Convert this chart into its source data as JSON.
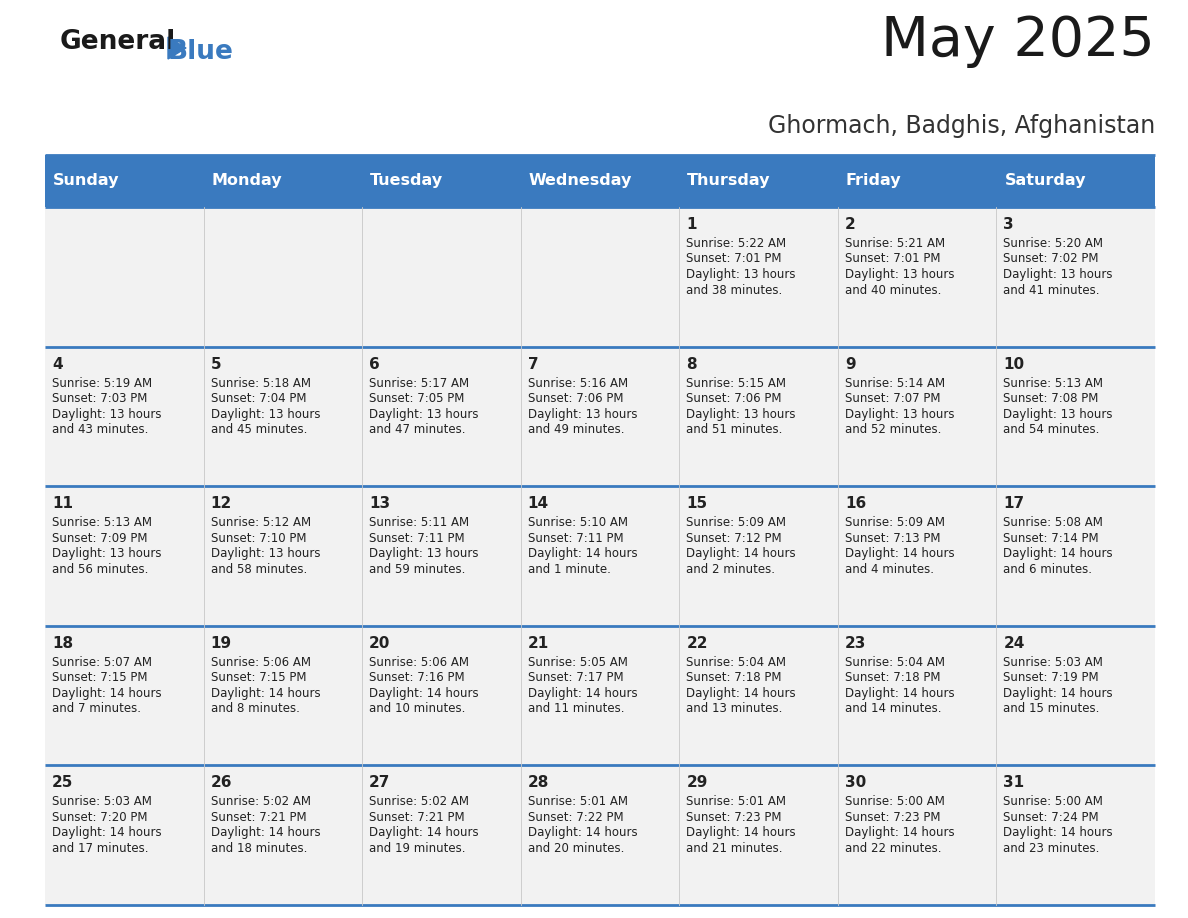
{
  "title": "May 2025",
  "subtitle": "Ghormach, Badghis, Afghanistan",
  "header_bg": "#3a7abf",
  "header_text": "#ffffff",
  "cell_bg": "#f2f2f2",
  "row_line_color": "#3a7abf",
  "days_of_week": [
    "Sunday",
    "Monday",
    "Tuesday",
    "Wednesday",
    "Thursday",
    "Friday",
    "Saturday"
  ],
  "calendar": [
    [
      {
        "day": "",
        "sunrise": "",
        "sunset": "",
        "daylight": ""
      },
      {
        "day": "",
        "sunrise": "",
        "sunset": "",
        "daylight": ""
      },
      {
        "day": "",
        "sunrise": "",
        "sunset": "",
        "daylight": ""
      },
      {
        "day": "",
        "sunrise": "",
        "sunset": "",
        "daylight": ""
      },
      {
        "day": "1",
        "sunrise": "5:22 AM",
        "sunset": "7:01 PM",
        "daylight": "13 hours\nand 38 minutes."
      },
      {
        "day": "2",
        "sunrise": "5:21 AM",
        "sunset": "7:01 PM",
        "daylight": "13 hours\nand 40 minutes."
      },
      {
        "day": "3",
        "sunrise": "5:20 AM",
        "sunset": "7:02 PM",
        "daylight": "13 hours\nand 41 minutes."
      }
    ],
    [
      {
        "day": "4",
        "sunrise": "5:19 AM",
        "sunset": "7:03 PM",
        "daylight": "13 hours\nand 43 minutes."
      },
      {
        "day": "5",
        "sunrise": "5:18 AM",
        "sunset": "7:04 PM",
        "daylight": "13 hours\nand 45 minutes."
      },
      {
        "day": "6",
        "sunrise": "5:17 AM",
        "sunset": "7:05 PM",
        "daylight": "13 hours\nand 47 minutes."
      },
      {
        "day": "7",
        "sunrise": "5:16 AM",
        "sunset": "7:06 PM",
        "daylight": "13 hours\nand 49 minutes."
      },
      {
        "day": "8",
        "sunrise": "5:15 AM",
        "sunset": "7:06 PM",
        "daylight": "13 hours\nand 51 minutes."
      },
      {
        "day": "9",
        "sunrise": "5:14 AM",
        "sunset": "7:07 PM",
        "daylight": "13 hours\nand 52 minutes."
      },
      {
        "day": "10",
        "sunrise": "5:13 AM",
        "sunset": "7:08 PM",
        "daylight": "13 hours\nand 54 minutes."
      }
    ],
    [
      {
        "day": "11",
        "sunrise": "5:13 AM",
        "sunset": "7:09 PM",
        "daylight": "13 hours\nand 56 minutes."
      },
      {
        "day": "12",
        "sunrise": "5:12 AM",
        "sunset": "7:10 PM",
        "daylight": "13 hours\nand 58 minutes."
      },
      {
        "day": "13",
        "sunrise": "5:11 AM",
        "sunset": "7:11 PM",
        "daylight": "13 hours\nand 59 minutes."
      },
      {
        "day": "14",
        "sunrise": "5:10 AM",
        "sunset": "7:11 PM",
        "daylight": "14 hours\nand 1 minute."
      },
      {
        "day": "15",
        "sunrise": "5:09 AM",
        "sunset": "7:12 PM",
        "daylight": "14 hours\nand 2 minutes."
      },
      {
        "day": "16",
        "sunrise": "5:09 AM",
        "sunset": "7:13 PM",
        "daylight": "14 hours\nand 4 minutes."
      },
      {
        "day": "17",
        "sunrise": "5:08 AM",
        "sunset": "7:14 PM",
        "daylight": "14 hours\nand 6 minutes."
      }
    ],
    [
      {
        "day": "18",
        "sunrise": "5:07 AM",
        "sunset": "7:15 PM",
        "daylight": "14 hours\nand 7 minutes."
      },
      {
        "day": "19",
        "sunrise": "5:06 AM",
        "sunset": "7:15 PM",
        "daylight": "14 hours\nand 8 minutes."
      },
      {
        "day": "20",
        "sunrise": "5:06 AM",
        "sunset": "7:16 PM",
        "daylight": "14 hours\nand 10 minutes."
      },
      {
        "day": "21",
        "sunrise": "5:05 AM",
        "sunset": "7:17 PM",
        "daylight": "14 hours\nand 11 minutes."
      },
      {
        "day": "22",
        "sunrise": "5:04 AM",
        "sunset": "7:18 PM",
        "daylight": "14 hours\nand 13 minutes."
      },
      {
        "day": "23",
        "sunrise": "5:04 AM",
        "sunset": "7:18 PM",
        "daylight": "14 hours\nand 14 minutes."
      },
      {
        "day": "24",
        "sunrise": "5:03 AM",
        "sunset": "7:19 PM",
        "daylight": "14 hours\nand 15 minutes."
      }
    ],
    [
      {
        "day": "25",
        "sunrise": "5:03 AM",
        "sunset": "7:20 PM",
        "daylight": "14 hours\nand 17 minutes."
      },
      {
        "day": "26",
        "sunrise": "5:02 AM",
        "sunset": "7:21 PM",
        "daylight": "14 hours\nand 18 minutes."
      },
      {
        "day": "27",
        "sunrise": "5:02 AM",
        "sunset": "7:21 PM",
        "daylight": "14 hours\nand 19 minutes."
      },
      {
        "day": "28",
        "sunrise": "5:01 AM",
        "sunset": "7:22 PM",
        "daylight": "14 hours\nand 20 minutes."
      },
      {
        "day": "29",
        "sunrise": "5:01 AM",
        "sunset": "7:23 PM",
        "daylight": "14 hours\nand 21 minutes."
      },
      {
        "day": "30",
        "sunrise": "5:00 AM",
        "sunset": "7:23 PM",
        "daylight": "14 hours\nand 22 minutes."
      },
      {
        "day": "31",
        "sunrise": "5:00 AM",
        "sunset": "7:24 PM",
        "daylight": "14 hours\nand 23 minutes."
      }
    ]
  ]
}
